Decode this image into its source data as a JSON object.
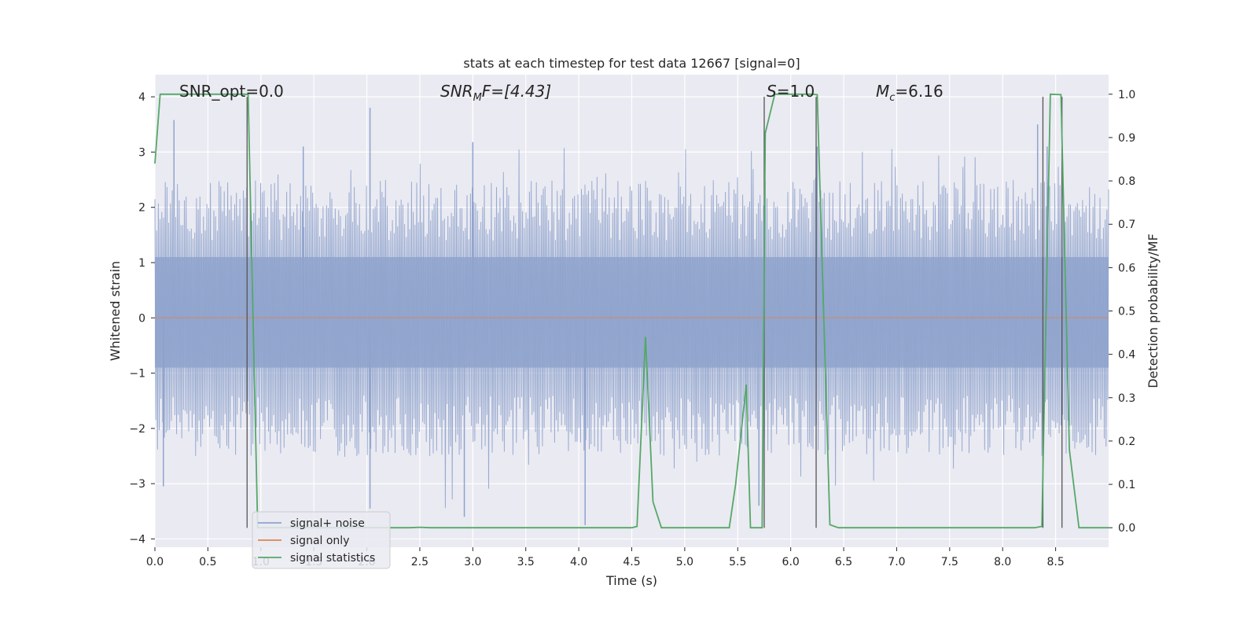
{
  "chart_data": {
    "type": "line",
    "title": "stats at each timestep for test data 12667 [signal=0]",
    "xlabel": "Time (s)",
    "ylabel": "Whitened strain",
    "ylabel_right": "Detection probability/MF",
    "xlim": [
      0,
      9.0
    ],
    "ylim": [
      -4.15,
      4.4
    ],
    "ylim_right": [
      -0.045,
      1.045
    ],
    "x_ticks": [
      0.0,
      0.5,
      1.0,
      1.5,
      2.0,
      2.5,
      3.0,
      3.5,
      4.0,
      4.5,
      5.0,
      5.5,
      6.0,
      6.5,
      7.0,
      7.5,
      8.0,
      8.5
    ],
    "x_tick_labels": [
      "0.0",
      "0.5",
      "1.0",
      "1.5",
      "2.0",
      "2.5",
      "3.0",
      "3.5",
      "4.0",
      "4.5",
      "5.0",
      "5.5",
      "6.0",
      "6.5",
      "7.0",
      "7.5",
      "8.0",
      "8.5"
    ],
    "y_ticks": [
      -4,
      -3,
      -2,
      -1,
      0,
      1,
      2,
      3,
      4
    ],
    "y_tick_labels": [
      "−4",
      "−3",
      "−2",
      "−1",
      "0",
      "1",
      "2",
      "3",
      "4"
    ],
    "y2_ticks": [
      0.0,
      0.1,
      0.2,
      0.3,
      0.4,
      0.5,
      0.6,
      0.7,
      0.8,
      0.9,
      1.0
    ],
    "y2_tick_labels": [
      "0.0",
      "0.1",
      "0.2",
      "0.3",
      "0.4",
      "0.5",
      "0.6",
      "0.7",
      "0.8",
      "0.9",
      "1.0"
    ],
    "grid": true,
    "legend_position": "lower-left",
    "legend": [
      {
        "label": "signal+ noise",
        "color": "#8fa3cc"
      },
      {
        "label": "signal only",
        "color": "#dd8452"
      },
      {
        "label": "signal statistics",
        "color": "#55a868"
      }
    ],
    "annotations": {
      "snr_opt": "SNR_opt=0.0",
      "snr_mf_main": "SNR",
      "snr_mf_sub": "M",
      "snr_mf_rest": "F=[4.43]",
      "s_main": "S",
      "s_rest": "=1.0",
      "mc_main": "M",
      "mc_sub": "c",
      "mc_rest": "=6.16"
    },
    "noise_series": {
      "name": "signal+ noise",
      "dense_band": [
        -1.45,
        1.65
      ],
      "peaks": [
        {
          "x": 0.18,
          "y": 3.58
        },
        {
          "x": 2.03,
          "y": 3.8
        },
        {
          "x": 2.03,
          "y": -3.45
        },
        {
          "x": 4.06,
          "y": -3.75
        },
        {
          "x": 2.92,
          "y": -3.6
        },
        {
          "x": 0.08,
          "y": -3.05
        },
        {
          "x": 8.33,
          "y": 3.5
        },
        {
          "x": 8.42,
          "y": 3.1
        },
        {
          "x": 6.25,
          "y": 3.1
        },
        {
          "x": 5.7,
          "y": -3.4
        },
        {
          "x": 3.0,
          "y": 3.18
        },
        {
          "x": 1.4,
          "y": 3.1
        }
      ]
    },
    "signal_series": {
      "name": "signal only",
      "x": [
        0,
        9.0
      ],
      "y": [
        0,
        0
      ]
    },
    "series": [
      {
        "name": "signal statistics",
        "axis": "right",
        "x": [
          0.0,
          0.05,
          0.12,
          0.85,
          0.88,
          0.97,
          1.0,
          2.4,
          2.5,
          2.6,
          4.5,
          4.55,
          4.63,
          4.7,
          4.78,
          5.42,
          5.48,
          5.58,
          5.62,
          5.73,
          5.76,
          5.85,
          5.92,
          6.2,
          6.25,
          6.37,
          6.45,
          8.3,
          8.37,
          8.45,
          8.55,
          8.63,
          8.72,
          9.0
        ],
        "y": [
          0.84,
          1.0,
          1.0,
          1.0,
          0.999,
          0.0,
          0.0,
          0.0,
          0.001,
          0.0,
          0.0,
          0.003,
          0.44,
          0.06,
          0.0,
          0.0,
          0.1,
          0.33,
          0.0,
          0.0,
          0.91,
          1.0,
          1.0,
          1.0,
          0.999,
          0.007,
          0.0,
          0.0,
          0.003,
          1.0,
          0.999,
          0.18,
          0.0,
          0.0
        ]
      }
    ],
    "vertical_markers": [
      {
        "x": 0.87,
        "y_top": 4.0,
        "y_bottom": -3.8
      },
      {
        "x": 5.75,
        "y_top": 4.0,
        "y_bottom": -3.8
      },
      {
        "x": 6.24,
        "y_top": 4.0,
        "y_bottom": -3.8
      },
      {
        "x": 8.38,
        "y_top": 4.0,
        "y_bottom": -3.8
      },
      {
        "x": 8.56,
        "y_top": 4.0,
        "y_bottom": -3.8
      }
    ],
    "colors": {
      "plot_background": "#eaeaf2",
      "grid": "#ffffff",
      "noise": "#8fa3cc",
      "signal_only": "#dd8452",
      "statistics": "#55a868",
      "marker": "#555555"
    }
  }
}
